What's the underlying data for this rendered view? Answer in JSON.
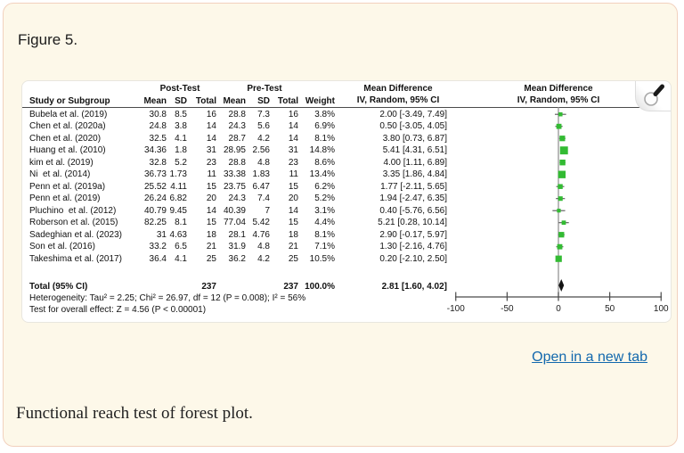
{
  "figure": {
    "label": "Figure 5.",
    "caption": "Functional reach test of forest plot.",
    "open_link": "Open in a new tab"
  },
  "colors": {
    "card_bg": "#fdf8e9",
    "card_border": "#f2d1be",
    "marker_green": "#33bb33",
    "diamond_black": "#141414",
    "link_blue": "#1268ad"
  },
  "chart_data": {
    "type": "forest",
    "headers": {
      "study": "Study or Subgroup",
      "post_group": "Post-Test",
      "pre_group": "Pre-Test",
      "mean": "Mean",
      "sd": "SD",
      "total": "Total",
      "weight": "Weight",
      "md": "Mean Difference",
      "method": "IV, Random, 95% CI"
    },
    "studies": [
      {
        "name": "Bubela et al. (2019)",
        "post": {
          "mean": "30.8",
          "sd": "8.5",
          "total": "16"
        },
        "pre": {
          "mean": "28.8",
          "sd": "7.3",
          "total": "16"
        },
        "weight": "3.8%",
        "weight_pct": 3.8,
        "md_label": "2.00 [-3.49, 7.49]",
        "est": 2.0,
        "lo": -3.49,
        "hi": 7.49
      },
      {
        "name": "Chen et al. (2020a)",
        "post": {
          "mean": "24.8",
          "sd": "3.8",
          "total": "14"
        },
        "pre": {
          "mean": "24.3",
          "sd": "5.6",
          "total": "14"
        },
        "weight": "6.9%",
        "weight_pct": 6.9,
        "md_label": "0.50 [-3.05, 4.05]",
        "est": 0.5,
        "lo": -3.05,
        "hi": 4.05
      },
      {
        "name": "Chen et al. (2020)",
        "post": {
          "mean": "32.5",
          "sd": "4.1",
          "total": "14"
        },
        "pre": {
          "mean": "28.7",
          "sd": "4.2",
          "total": "14"
        },
        "weight": "8.1%",
        "weight_pct": 8.1,
        "md_label": "3.80 [0.73, 6.87]",
        "est": 3.8,
        "lo": 0.73,
        "hi": 6.87
      },
      {
        "name": "Huang et al. (2010)",
        "post": {
          "mean": "34.36",
          "sd": "1.8",
          "total": "31"
        },
        "pre": {
          "mean": "28.95",
          "sd": "2.56",
          "total": "31"
        },
        "weight": "14.8%",
        "weight_pct": 14.8,
        "md_label": "5.41 [4.31, 6.51]",
        "est": 5.41,
        "lo": 4.31,
        "hi": 6.51
      },
      {
        "name": "kim et al. (2019)",
        "post": {
          "mean": "32.8",
          "sd": "5.2",
          "total": "23"
        },
        "pre": {
          "mean": "28.8",
          "sd": "4.8",
          "total": "23"
        },
        "weight": "8.6%",
        "weight_pct": 8.6,
        "md_label": "4.00 [1.11, 6.89]",
        "est": 4.0,
        "lo": 1.11,
        "hi": 6.89
      },
      {
        "name": "Ni  et al. (2014)",
        "post": {
          "mean": "36.73",
          "sd": "1.73",
          "total": "11"
        },
        "pre": {
          "mean": "33.38",
          "sd": "1.83",
          "total": "11"
        },
        "weight": "13.4%",
        "weight_pct": 13.4,
        "md_label": "3.35 [1.86, 4.84]",
        "est": 3.35,
        "lo": 1.86,
        "hi": 4.84
      },
      {
        "name": "Penn et al. (2019a)",
        "post": {
          "mean": "25.52",
          "sd": "4.11",
          "total": "15"
        },
        "pre": {
          "mean": "23.75",
          "sd": "6.47",
          "total": "15"
        },
        "weight": "6.2%",
        "weight_pct": 6.2,
        "md_label": "1.77 [-2.11, 5.65]",
        "est": 1.77,
        "lo": -2.11,
        "hi": 5.65
      },
      {
        "name": "Penn et al. (2019)",
        "post": {
          "mean": "26.24",
          "sd": "6.82",
          "total": "20"
        },
        "pre": {
          "mean": "24.3",
          "sd": "7.4",
          "total": "20"
        },
        "weight": "5.2%",
        "weight_pct": 5.2,
        "md_label": "1.94 [-2.47, 6.35]",
        "est": 1.94,
        "lo": -2.47,
        "hi": 6.35
      },
      {
        "name": "Pluchino  et al. (2012)",
        "post": {
          "mean": "40.79",
          "sd": "9.45",
          "total": "14"
        },
        "pre": {
          "mean": "40.39",
          "sd": "7",
          "total": "14"
        },
        "weight": "3.1%",
        "weight_pct": 3.1,
        "md_label": "0.40 [-5.76, 6.56]",
        "est": 0.4,
        "lo": -5.76,
        "hi": 6.56
      },
      {
        "name": "Roberson et al. (2015)",
        "post": {
          "mean": "82.25",
          "sd": "8.1",
          "total": "15"
        },
        "pre": {
          "mean": "77.04",
          "sd": "5.42",
          "total": "15"
        },
        "weight": "4.4%",
        "weight_pct": 4.4,
        "md_label": "5.21 [0.28, 10.14]",
        "est": 5.21,
        "lo": 0.28,
        "hi": 10.14
      },
      {
        "name": "Sadeghian et al. (2023)",
        "post": {
          "mean": "31",
          "sd": "4.63",
          "total": "18"
        },
        "pre": {
          "mean": "28.1",
          "sd": "4.76",
          "total": "18"
        },
        "weight": "8.1%",
        "weight_pct": 8.1,
        "md_label": "2.90 [-0.17, 5.97]",
        "est": 2.9,
        "lo": -0.17,
        "hi": 5.97
      },
      {
        "name": "Son et al. (2016)",
        "post": {
          "mean": "33.2",
          "sd": "6.5",
          "total": "21"
        },
        "pre": {
          "mean": "31.9",
          "sd": "4.8",
          "total": "21"
        },
        "weight": "7.1%",
        "weight_pct": 7.1,
        "md_label": "1.30 [-2.16, 4.76]",
        "est": 1.3,
        "lo": -2.16,
        "hi": 4.76
      },
      {
        "name": "Takeshima et al. (2017)",
        "post": {
          "mean": "36.4",
          "sd": "4.1",
          "total": "25"
        },
        "pre": {
          "mean": "36.2",
          "sd": "4.2",
          "total": "25"
        },
        "weight": "10.5%",
        "weight_pct": 10.5,
        "md_label": "0.20 [-2.10, 2.50]",
        "est": 0.2,
        "lo": -2.1,
        "hi": 2.5
      }
    ],
    "total": {
      "label": "Total (95% CI)",
      "post_total": "237",
      "pre_total": "237",
      "weight": "100.0%",
      "md_label": "2.81 [1.60, 4.02]",
      "est": 2.81,
      "lo": 1.6,
      "hi": 4.02
    },
    "heterogeneity": "Heterogeneity: Tau² = 2.25; Chi² = 26.97, df = 12 (P = 0.008); I² = 56%",
    "overall_effect": "Test for overall effect: Z = 4.56 (P < 0.00001)",
    "axis": {
      "ticks": [
        -100,
        -50,
        0,
        50,
        100
      ],
      "min": -100,
      "max": 100
    }
  }
}
